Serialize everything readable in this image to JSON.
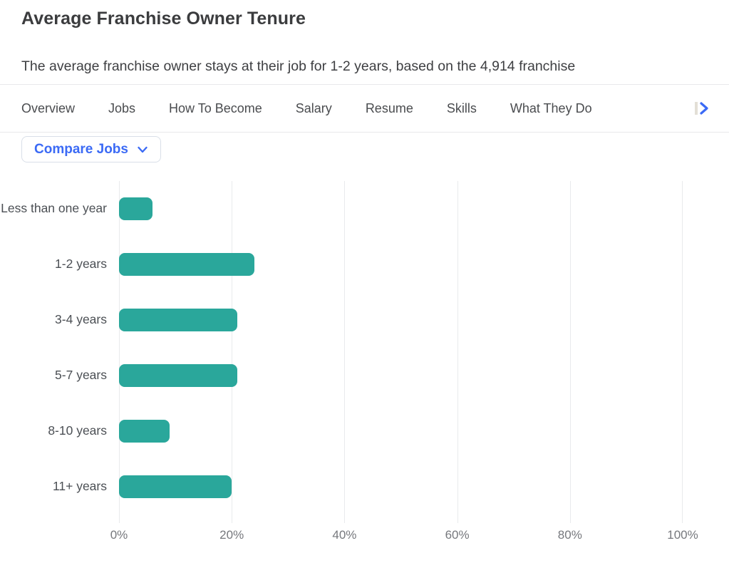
{
  "page": {
    "title": "Average Franchise Owner Tenure",
    "subtitle": "The average franchise owner stays at their job for 1-2 years, based on the 4,914 franchise"
  },
  "nav": {
    "items": [
      "Overview",
      "Jobs",
      "How To Become",
      "Salary",
      "Resume",
      "Skills",
      "What They Do"
    ],
    "next_icon": "chevron-right-icon"
  },
  "toolbar": {
    "compare_jobs_label": "Compare Jobs",
    "dropdown_icon": "chevron-down-icon"
  },
  "chart_data": {
    "type": "bar",
    "orientation": "horizontal",
    "title": "Average Franchise Owner Tenure",
    "categories": [
      "Less than one year",
      "1-2 years",
      "3-4 years",
      "5-7 years",
      "8-10 years",
      "11+ years"
    ],
    "values": [
      6,
      24,
      21,
      21,
      9,
      20
    ],
    "value_unit": "%",
    "x_ticks": [
      "0%",
      "20%",
      "40%",
      "60%",
      "80%",
      "100%"
    ],
    "xlim": [
      0,
      100
    ],
    "grid": true,
    "legend": false,
    "bar_color": "#2aa79b"
  },
  "colors": {
    "accent_blue": "#3b6af5",
    "bar_teal": "#2aa79b",
    "gridline": "#e9eaec",
    "text_dark": "#3b3c3e",
    "text_muted": "#76787d"
  }
}
